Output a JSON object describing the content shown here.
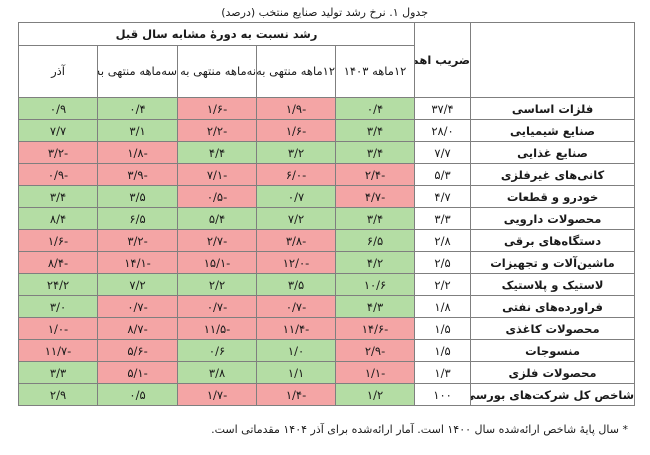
{
  "caption": "جدول ۱. نرخ رشد تولید صنایع منتخب (درصد)",
  "header": {
    "weight": "ضریب اهمیت",
    "group": "رشد نسبت به دورهٔ مشابه سال قبل",
    "columns": [
      "۱۲ماهه ۱۴۰۳",
      "۱۲ماهه منتهی به آذر",
      "نه‌ماهه منتهی به آذر",
      "سه‌ماهه منتهی به آذر",
      "آذر"
    ]
  },
  "rows": [
    {
      "name": "فلزات اساسی",
      "weight": "۳۷/۴",
      "values": [
        "۰/۴",
        "-۱/۹",
        "-۱/۶",
        "۰/۴",
        "۰/۹"
      ],
      "colors": [
        "pos",
        "neg",
        "neg",
        "pos",
        "pos"
      ]
    },
    {
      "name": "صنایع شیمیایی",
      "weight": "۲۸/۰",
      "values": [
        "۳/۴",
        "-۱/۶",
        "-۲/۲",
        "۳/۱",
        "۷/۷"
      ],
      "colors": [
        "pos",
        "neg",
        "neg",
        "pos",
        "pos"
      ]
    },
    {
      "name": "صنایع غذایی",
      "weight": "۷/۷",
      "values": [
        "۳/۴",
        "۳/۲",
        "۴/۴",
        "-۱/۸",
        "-۳/۲"
      ],
      "colors": [
        "pos",
        "pos",
        "pos",
        "neg",
        "neg"
      ]
    },
    {
      "name": "کانی‌های غیرفلزی",
      "weight": "۵/۳",
      "values": [
        "-۲/۴",
        "-۶/۰",
        "-۷/۱",
        "-۳/۹",
        "-۰/۹"
      ],
      "colors": [
        "neg",
        "neg",
        "neg",
        "neg",
        "neg"
      ]
    },
    {
      "name": "خودرو و قطعات",
      "weight": "۴/۷",
      "values": [
        "-۴/۷",
        "۰/۷",
        "-۰/۵",
        "۳/۵",
        "۳/۴"
      ],
      "colors": [
        "neg",
        "pos",
        "neg",
        "pos",
        "pos"
      ]
    },
    {
      "name": "محصولات دارویی",
      "weight": "۳/۳",
      "values": [
        "۳/۴",
        "۷/۲",
        "۵/۴",
        "۶/۵",
        "۸/۴"
      ],
      "colors": [
        "pos",
        "pos",
        "pos",
        "pos",
        "pos"
      ]
    },
    {
      "name": "دستگاه‌های برقی",
      "weight": "۲/۸",
      "values": [
        "۶/۵",
        "-۳/۸",
        "-۲/۷",
        "-۳/۲",
        "-۱/۶"
      ],
      "colors": [
        "pos",
        "neg",
        "neg",
        "neg",
        "neg"
      ]
    },
    {
      "name": "ماشین‌آلات و تجهیزات",
      "weight": "۲/۵",
      "values": [
        "۴/۲",
        "-۱۲/۰",
        "-۱۵/۱",
        "-۱۴/۱",
        "-۸/۴"
      ],
      "colors": [
        "pos",
        "neg",
        "neg",
        "neg",
        "neg"
      ]
    },
    {
      "name": "لاستیک و پلاستیک",
      "weight": "۲/۲",
      "values": [
        "۱۰/۶",
        "۳/۵",
        "۲/۲",
        "۷/۲",
        "۲۴/۲"
      ],
      "colors": [
        "pos",
        "pos",
        "pos",
        "pos",
        "pos"
      ]
    },
    {
      "name": "فراورده‌های نفتی",
      "weight": "۱/۸",
      "values": [
        "۴/۳",
        "-۰/۷",
        "-۰/۷",
        "-۰/۷",
        "۳/۰"
      ],
      "colors": [
        "pos",
        "neg",
        "neg",
        "neg",
        "pos"
      ]
    },
    {
      "name": "محصولات کاغذی",
      "weight": "۱/۵",
      "values": [
        "-۱۴/۶",
        "-۱۱/۴",
        "-۱۱/۵",
        "-۸/۷",
        "-۱/۰"
      ],
      "colors": [
        "neg",
        "neg",
        "neg",
        "neg",
        "neg"
      ]
    },
    {
      "name": "منسوجات",
      "weight": "۱/۵",
      "values": [
        "-۲/۹",
        "۱/۰",
        "۰/۶",
        "-۵/۶",
        "-۱۱/۷"
      ],
      "colors": [
        "neg",
        "pos",
        "pos",
        "neg",
        "neg"
      ]
    },
    {
      "name": "محصولات فلزی",
      "weight": "۱/۳",
      "values": [
        "-۱/۱",
        "۱/۱",
        "۳/۸",
        "-۵/۱",
        "۳/۳"
      ],
      "colors": [
        "neg",
        "pos",
        "pos",
        "neg",
        "pos"
      ]
    },
    {
      "name": "شاخص کل شرکت‌های بورسی",
      "weight": "۱۰۰",
      "values": [
        "۱/۲",
        "-۱/۴",
        "-۱/۷",
        "۰/۵",
        "۲/۹"
      ],
      "colors": [
        "pos",
        "neg",
        "neg",
        "pos",
        "pos"
      ]
    }
  ],
  "footnote": "* سال پایهٔ شاخص ارائه‌شده سال ۱۴۰۰ است. آمار ارائه‌شده برای آذر ۱۴۰۴ مقدماتی است."
}
